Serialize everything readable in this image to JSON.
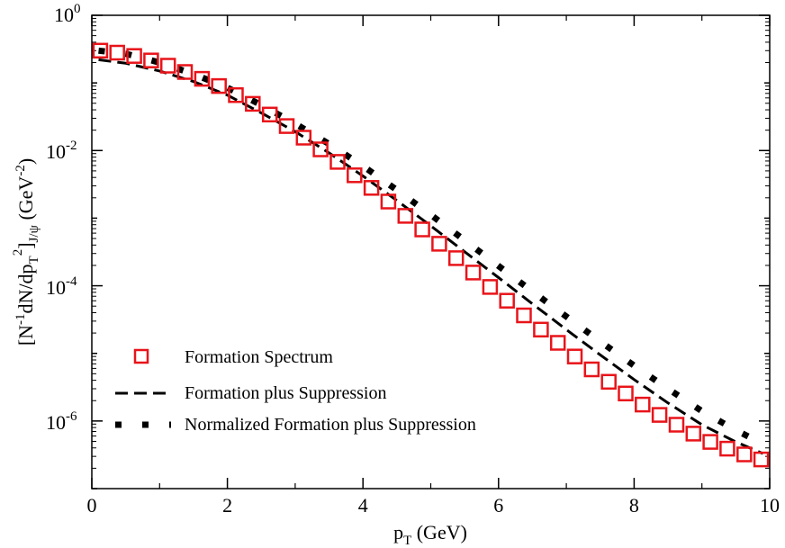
{
  "chart_data": {
    "type": "line",
    "xlabel": "p_T (GeV)",
    "ylabel": "[N^-1 dN/dp_T^2]_J/ψ (GeV^-2)",
    "xlim": [
      0,
      10
    ],
    "ylim": [
      1e-07,
      1
    ],
    "yscale": "log",
    "legend_position": "bottom-left",
    "x_ticks": [
      0,
      2,
      4,
      6,
      8,
      10
    ],
    "x_tick_labels": [
      "0",
      "2",
      "4",
      "6",
      "8",
      "10"
    ],
    "y_ticks": [
      1,
      0.01,
      0.0001,
      1e-06
    ],
    "y_tick_labels": [
      {
        "base": "10",
        "exp": "0"
      },
      {
        "base": "10",
        "exp": "-2"
      },
      {
        "base": "10",
        "exp": "-4"
      },
      {
        "base": "10",
        "exp": "-6"
      }
    ],
    "series": [
      {
        "name": "Formation Spectrum",
        "style": "open-square",
        "color": "#e8141a",
        "x": [
          0.125,
          0.375,
          0.625,
          0.875,
          1.125,
          1.375,
          1.625,
          1.875,
          2.125,
          2.375,
          2.625,
          2.875,
          3.125,
          3.375,
          3.625,
          3.875,
          4.125,
          4.375,
          4.625,
          4.875,
          5.125,
          5.375,
          5.625,
          5.875,
          6.125,
          6.375,
          6.625,
          6.875,
          7.125,
          7.375,
          7.625,
          7.875,
          8.125,
          8.375,
          8.625,
          8.875,
          9.125,
          9.375,
          9.625,
          9.875
        ],
        "y": [
          0.3,
          0.28,
          0.25,
          0.215,
          0.18,
          0.145,
          0.115,
          0.09,
          0.066,
          0.049,
          0.034,
          0.023,
          0.0155,
          0.0104,
          0.0068,
          0.0043,
          0.0028,
          0.00176,
          0.00108,
          0.00068,
          0.000418,
          0.000256,
          0.000157,
          9.6e-05,
          6e-05,
          3.65e-05,
          2.25e-05,
          1.43e-05,
          9e-06,
          5.8e-06,
          3.8e-06,
          2.55e-06,
          1.75e-06,
          1.23e-06,
          8.8e-07,
          6.5e-07,
          4.9e-07,
          3.9e-07,
          3.2e-07,
          2.7e-07
        ]
      },
      {
        "name": "Formation plus Suppression",
        "style": "dashed",
        "color": "#000000",
        "x": [
          0.1,
          0.5,
          1.0,
          1.5,
          2.0,
          2.5,
          3.0,
          3.5,
          4.0,
          4.5,
          5.0,
          5.5,
          6.0,
          6.5,
          7.0,
          7.5,
          8.0,
          8.5,
          9.0,
          9.5,
          9.9
        ],
        "y": [
          0.22,
          0.195,
          0.15,
          0.105,
          0.066,
          0.036,
          0.019,
          0.0092,
          0.0042,
          0.00182,
          0.00077,
          0.000318,
          0.000132,
          5.4e-05,
          2.25e-05,
          9.5e-06,
          4.1e-06,
          1.85e-06,
          8.8e-07,
          4.9e-07,
          3.3e-07
        ]
      },
      {
        "name": "Normalized Formation plus Suppression",
        "style": "dotted",
        "color": "#000000",
        "x": [
          0.1,
          0.5,
          1.0,
          1.5,
          2.0,
          2.5,
          3.0,
          3.5,
          4.0,
          4.5,
          5.0,
          5.5,
          6.0,
          6.5,
          7.0,
          7.5,
          8.0,
          8.5,
          9.0,
          9.5,
          9.9
        ],
        "y": [
          0.3,
          0.27,
          0.2,
          0.135,
          0.085,
          0.047,
          0.025,
          0.0125,
          0.0059,
          0.0026,
          0.00112,
          0.00047,
          0.000196,
          8.2e-05,
          3.5e-05,
          1.5e-05,
          6.6e-06,
          3e-06,
          1.4e-06,
          7.3e-07,
          4.6e-07
        ]
      }
    ]
  },
  "axes": {
    "x_label_main": "p",
    "x_label_sub": "T",
    "x_label_rest": " (GeV)",
    "y_label_parts": {
      "open": "[N",
      "sup1": "-1",
      "mid1": "dN/dp",
      "sub1": "T",
      "sup2": "2",
      "close": "]",
      "sub2": "J/ψ",
      "unit_open": " (GeV",
      "sup3": "-2",
      "unit_close": ")"
    }
  }
}
